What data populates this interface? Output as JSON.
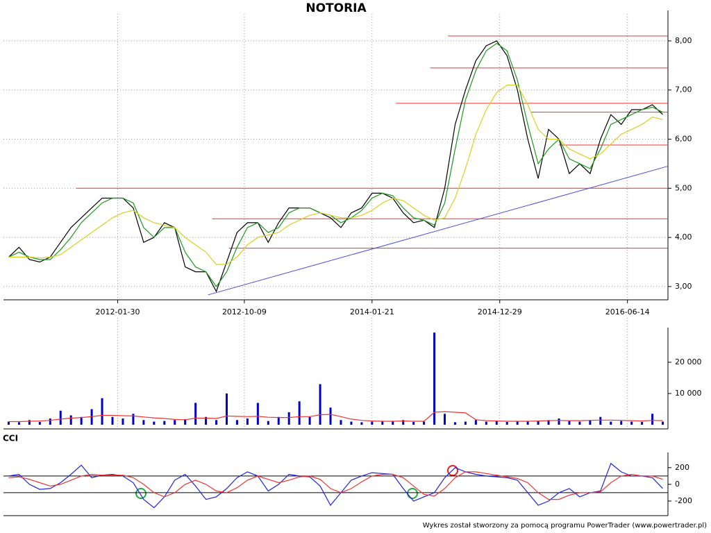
{
  "footer": "Wykres został stworzony za pomocą programu PowerTrader (www.powertrader.pl)",
  "chart_data": [
    {
      "type": "line",
      "title": "NOTORIA",
      "xlim": [
        0,
        64
      ],
      "xticks": [
        {
          "value": 11,
          "label": "2012-01-30"
        },
        {
          "value": 23.2,
          "label": "2012-10-09"
        },
        {
          "value": 35.5,
          "label": "2014-01-21"
        },
        {
          "value": 47.8,
          "label": "2014-12-29"
        },
        {
          "value": 60.1,
          "label": "2016-06-14"
        }
      ],
      "ylim": [
        2.73,
        8.55
      ],
      "yticks": [
        {
          "value": 3,
          "label": "3,00"
        },
        {
          "value": 4,
          "label": "4,00"
        },
        {
          "value": 5,
          "label": "5,00"
        },
        {
          "value": 6,
          "label": "6,00"
        },
        {
          "value": 7,
          "label": "7,00"
        },
        {
          "value": 8,
          "label": "8,00"
        }
      ],
      "grid": true,
      "series": [
        {
          "color": "#000000",
          "values": [
            3.6,
            3.8,
            3.55,
            3.5,
            3.6,
            3.9,
            4.2,
            4.4,
            4.6,
            4.8,
            4.8,
            4.8,
            4.6,
            3.9,
            4.0,
            4.3,
            4.2,
            3.4,
            3.3,
            3.3,
            2.9,
            3.5,
            4.1,
            4.3,
            4.3,
            3.9,
            4.3,
            4.6,
            4.6,
            4.6,
            4.5,
            4.4,
            4.2,
            4.5,
            4.6,
            4.9,
            4.9,
            4.8,
            4.5,
            4.3,
            4.35,
            4.2,
            5.0,
            6.3,
            7.0,
            7.6,
            7.9,
            8.0,
            7.7,
            7.0,
            6.0,
            5.2,
            6.2,
            6.0,
            5.3,
            5.5,
            5.3,
            6.0,
            6.5,
            6.3,
            6.6,
            6.6,
            6.7,
            6.5
          ]
        },
        {
          "color": "#1a9a1a",
          "values": [
            3.6,
            3.7,
            3.6,
            3.55,
            3.55,
            3.75,
            4.0,
            4.3,
            4.5,
            4.7,
            4.8,
            4.8,
            4.7,
            4.2,
            4.0,
            4.2,
            4.2,
            3.7,
            3.4,
            3.3,
            3.0,
            3.3,
            3.8,
            4.2,
            4.3,
            4.1,
            4.2,
            4.5,
            4.6,
            4.6,
            4.5,
            4.45,
            4.3,
            4.4,
            4.55,
            4.8,
            4.9,
            4.85,
            4.6,
            4.4,
            4.35,
            4.25,
            4.7,
            5.8,
            6.8,
            7.4,
            7.8,
            7.95,
            7.8,
            7.2,
            6.3,
            5.5,
            5.8,
            6.0,
            5.6,
            5.5,
            5.4,
            5.8,
            6.3,
            6.4,
            6.5,
            6.6,
            6.65,
            6.55
          ]
        },
        {
          "color": "#d8d020",
          "values": [
            3.6,
            3.6,
            3.6,
            3.58,
            3.6,
            3.65,
            3.8,
            3.95,
            4.1,
            4.25,
            4.4,
            4.5,
            4.55,
            4.4,
            4.3,
            4.25,
            4.2,
            4.0,
            3.85,
            3.7,
            3.45,
            3.45,
            3.6,
            3.85,
            4.0,
            4.05,
            4.1,
            4.25,
            4.35,
            4.45,
            4.5,
            4.45,
            4.4,
            4.4,
            4.45,
            4.55,
            4.7,
            4.8,
            4.75,
            4.6,
            4.45,
            4.35,
            4.4,
            4.8,
            5.4,
            6.1,
            6.6,
            6.95,
            7.1,
            7.1,
            6.7,
            6.2,
            6.0,
            6.0,
            5.8,
            5.7,
            5.6,
            5.7,
            5.9,
            6.1,
            6.2,
            6.3,
            6.45,
            6.4
          ]
        }
      ],
      "hlines": [
        {
          "value": 5.0,
          "from": 7.0,
          "color": "#ee3333"
        },
        {
          "value": 4.38,
          "from": 20.1,
          "color": "#ee3333"
        },
        {
          "value": 3.78,
          "from": 21.7,
          "color": "#ee3333"
        },
        {
          "value": 6.73,
          "from": 37.8,
          "color": "#ee3333"
        },
        {
          "value": 7.45,
          "from": 41.1,
          "color": "#ee3333"
        },
        {
          "value": 8.1,
          "from": 42.8,
          "color": "#ee3333"
        },
        {
          "value": 6.55,
          "from": 50.8,
          "color": "#ee3333"
        },
        {
          "value": 5.88,
          "from": 53.5,
          "color": "#ee3333"
        }
      ],
      "trendline": {
        "x": [
          19.7,
          64
        ],
        "y": [
          2.83,
          5.45
        ],
        "color": "#4b4bdc"
      }
    },
    {
      "type": "bar",
      "xlim": [
        0,
        64
      ],
      "ylim": [
        0,
        30000
      ],
      "yticks": [
        {
          "value": 10000,
          "label": "10 000"
        },
        {
          "value": 20000,
          "label": "20 000"
        }
      ],
      "series": [
        {
          "color": "#0000cc",
          "values": [
            1000,
            800,
            1500,
            900,
            2000,
            4500,
            3000,
            2500,
            5000,
            8500,
            2500,
            2000,
            3500,
            1500,
            1000,
            1200,
            1500,
            1800,
            7000,
            2500,
            1500,
            10000,
            1500,
            2000,
            7000,
            1200,
            2500,
            4000,
            7500,
            2500,
            13000,
            5500,
            1500,
            1000,
            800,
            1000,
            1200,
            1000,
            1500,
            900,
            1000,
            29500,
            3500,
            800,
            1000,
            1500,
            1000,
            1200,
            900,
            1200,
            1000,
            1200,
            1500,
            2000,
            1200,
            1000,
            1500,
            2500,
            1000,
            1200,
            1000,
            900,
            3500,
            1000
          ]
        },
        {
          "color": "#ee3333",
          "values": [
            1000,
            1000,
            1100,
            1200,
            1400,
            1800,
            2100,
            2300,
            2600,
            3000,
            3000,
            2900,
            2800,
            2500,
            2200,
            2000,
            1700,
            1600,
            2100,
            2100,
            2000,
            2800,
            2700,
            2600,
            2700,
            2400,
            2300,
            2300,
            2600,
            2600,
            3200,
            3300,
            2600,
            1800,
            1400,
            1200,
            1100,
            1100,
            1200,
            1100,
            1100,
            4000,
            4200,
            4000,
            3800,
            1600,
            1300,
            1200,
            1100,
            1100,
            1100,
            1200,
            1300,
            1400,
            1300,
            1300,
            1400,
            1500,
            1500,
            1400,
            1300,
            1200,
            1400,
            1300
          ]
        }
      ]
    },
    {
      "type": "line",
      "title": "CCI",
      "xlim": [
        0,
        64
      ],
      "ylim": [
        -350,
        340
      ],
      "yticks": [
        200,
        0,
        -200
      ],
      "hlines": [
        {
          "value": 100,
          "from": 0,
          "color": "#000000"
        },
        {
          "value": -100,
          "from": 0,
          "color": "#000000"
        }
      ],
      "series": [
        {
          "color": "#2222dd",
          "values": [
            100,
            120,
            0,
            -60,
            -50,
            20,
            120,
            230,
            80,
            110,
            120,
            100,
            20,
            -180,
            -280,
            -150,
            50,
            120,
            -20,
            -180,
            -150,
            -50,
            80,
            150,
            100,
            -80,
            0,
            120,
            100,
            90,
            -20,
            -250,
            -100,
            50,
            100,
            140,
            130,
            120,
            -50,
            -200,
            -150,
            -100,
            80,
            200,
            150,
            120,
            100,
            90,
            80,
            50,
            -100,
            -250,
            -200,
            -100,
            -50,
            -150,
            -100,
            -80,
            250,
            150,
            100,
            100,
            80,
            -50
          ]
        },
        {
          "color": "#ee3333",
          "values": [
            80,
            90,
            60,
            20,
            -20,
            0,
            50,
            100,
            120,
            110,
            110,
            110,
            80,
            0,
            -100,
            -150,
            -100,
            0,
            50,
            0,
            -80,
            -100,
            -40,
            50,
            100,
            60,
            20,
            50,
            90,
            100,
            60,
            -50,
            -100,
            -50,
            30,
            100,
            120,
            120,
            80,
            -20,
            -120,
            -140,
            -50,
            80,
            150,
            150,
            130,
            110,
            90,
            70,
            20,
            -100,
            -180,
            -180,
            -130,
            -100,
            -100,
            -90,
            20,
            100,
            120,
            100,
            100,
            60
          ]
        }
      ]
    }
  ]
}
